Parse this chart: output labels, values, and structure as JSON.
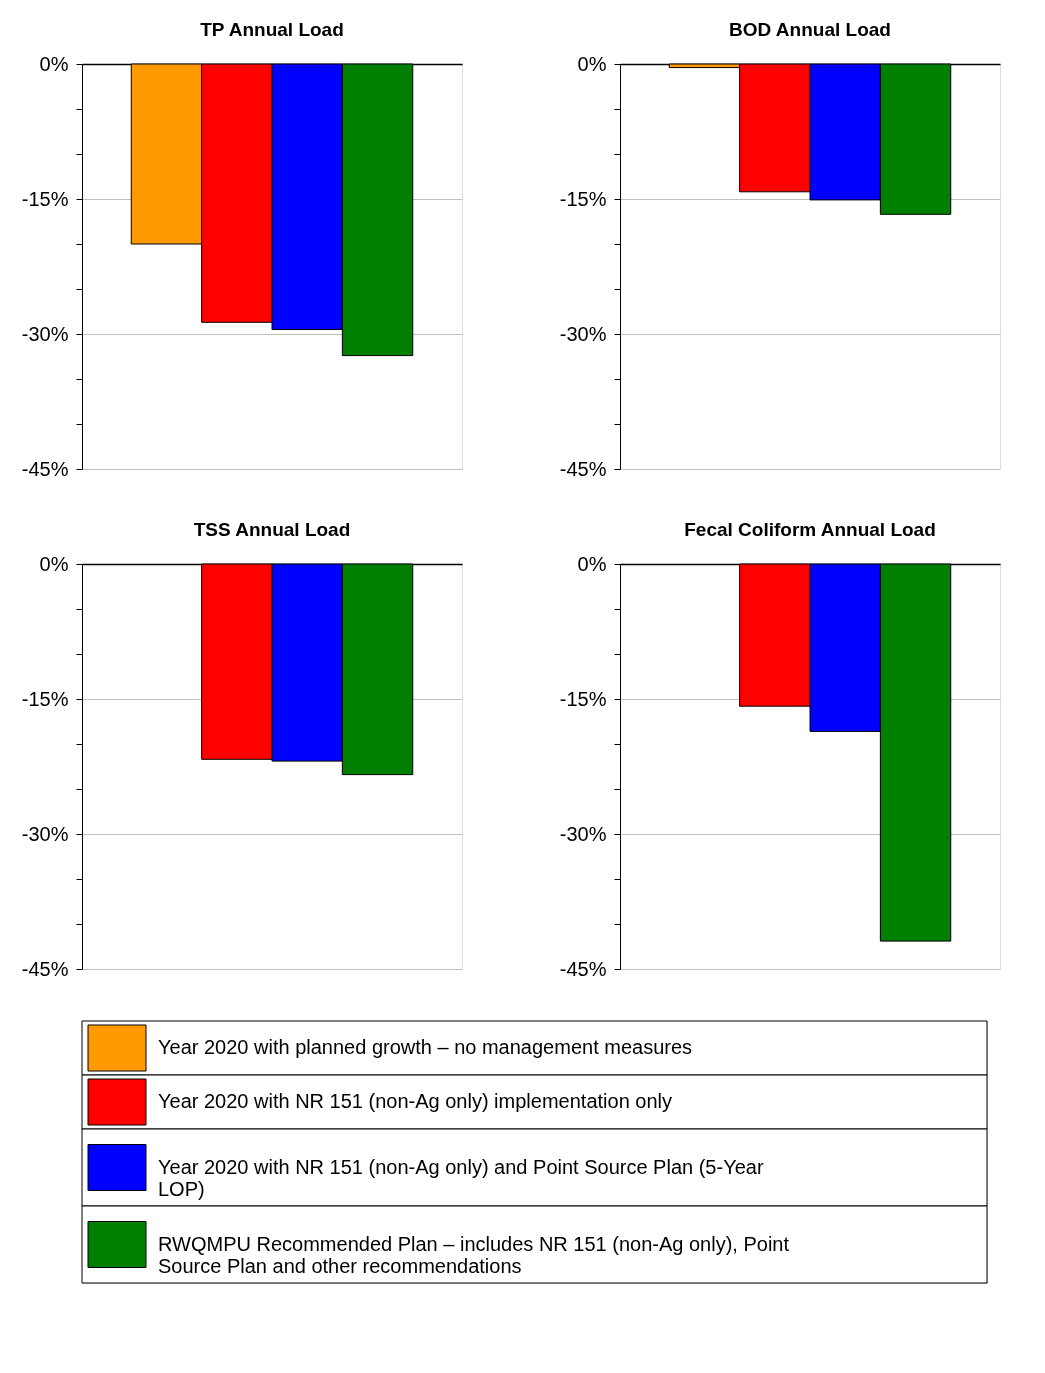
{
  "chart_data": [
    {
      "type": "bar",
      "title": "TP Annual Load",
      "categories": [
        null
      ],
      "tick_labels": "y",
      "grid": "y",
      "legend": "bottom",
      "ylim": [
        -45,
        0
      ],
      "yticks": [
        {
          "value": 0,
          "label": "0%"
        },
        {
          "value": -5,
          "label": null
        },
        {
          "value": -10,
          "label": null
        },
        {
          "value": -15,
          "label": "-15%"
        },
        {
          "value": -20,
          "label": null
        },
        {
          "value": -25,
          "label": null
        },
        {
          "value": -30,
          "label": "-30%"
        },
        {
          "value": -35,
          "label": null
        },
        {
          "value": -40,
          "label": null
        },
        {
          "value": -45,
          "label": "-45%"
        }
      ],
      "series": [
        {
          "name": "Year 2020 with planned growth – no management measures",
          "color": "#ff9900",
          "values": [
            -20
          ]
        },
        {
          "name": "Year 2020 with NR 151 (non-Ag only) implementation only",
          "color": "#ff0000",
          "values": [
            -28.7
          ]
        },
        {
          "name": "Year 2020 with NR 151 (non-Ag only) and Point Source Plan (5-Year LOP)",
          "color": "#0000ff",
          "values": [
            -29.5
          ]
        },
        {
          "name": "RWQMPU Recommended Plan – includes NR 151 (non-Ag only), Point Source Plan and other recommendations",
          "color": "#008000",
          "values": [
            -32.4
          ]
        }
      ]
    },
    {
      "type": "bar",
      "title": "BOD Annual Load",
      "categories": [
        null
      ],
      "tick_labels": "y",
      "grid": "y",
      "ylim": [
        -45,
        0
      ],
      "yticks": [
        {
          "value": 0,
          "label": "0%"
        },
        {
          "value": -5,
          "label": null
        },
        {
          "value": -10,
          "label": null
        },
        {
          "value": -15,
          "label": "-15%"
        },
        {
          "value": -20,
          "label": null
        },
        {
          "value": -25,
          "label": null
        },
        {
          "value": -30,
          "label": "-30%"
        },
        {
          "value": -35,
          "label": null
        },
        {
          "value": -40,
          "label": null
        },
        {
          "value": -45,
          "label": "-45%"
        }
      ],
      "series": [
        {
          "color": "#ff9900",
          "values": [
            -0.4
          ]
        },
        {
          "color": "#ff0000",
          "values": [
            -14.2
          ]
        },
        {
          "color": "#0000ff",
          "values": [
            -15.1
          ]
        },
        {
          "color": "#008000",
          "values": [
            -16.7
          ]
        }
      ]
    },
    {
      "type": "bar",
      "title": "TSS Annual Load",
      "categories": [
        null
      ],
      "tick_labels": "y",
      "grid": "y",
      "ylim": [
        -45,
        0
      ],
      "yticks": [
        {
          "value": 0,
          "label": "0%"
        },
        {
          "value": -5,
          "label": null
        },
        {
          "value": -10,
          "label": null
        },
        {
          "value": -15,
          "label": "-15%"
        },
        {
          "value": -20,
          "label": null
        },
        {
          "value": -25,
          "label": null
        },
        {
          "value": -30,
          "label": "-30%"
        },
        {
          "value": -35,
          "label": null
        },
        {
          "value": -40,
          "label": null
        },
        {
          "value": -45,
          "label": "-45%"
        }
      ],
      "series": [
        {
          "values": [
            null
          ]
        },
        {
          "color": "#ff0000",
          "values": [
            -21.7
          ]
        },
        {
          "color": "#0000ff",
          "values": [
            -21.9
          ]
        },
        {
          "color": "#008000",
          "values": [
            -23.4
          ]
        }
      ]
    },
    {
      "type": "bar",
      "title": "Fecal Coliform Annual Load",
      "categories": [
        null
      ],
      "tick_labels": "y",
      "grid": "y",
      "ylim": [
        -45,
        0
      ],
      "yticks": [
        {
          "value": 0,
          "label": "0%"
        },
        {
          "value": -5,
          "label": null
        },
        {
          "value": -10,
          "label": null
        },
        {
          "value": -15,
          "label": "-15%"
        },
        {
          "value": -20,
          "label": null
        },
        {
          "value": -25,
          "label": null
        },
        {
          "value": -30,
          "label": "-30%"
        },
        {
          "value": -35,
          "label": null
        },
        {
          "value": -40,
          "label": null
        },
        {
          "value": -45,
          "label": "-45%"
        }
      ],
      "series": [
        {
          "values": [
            null
          ]
        },
        {
          "color": "#ff0000",
          "values": [
            -15.8
          ]
        },
        {
          "color": "#0000ff",
          "values": [
            -18.6
          ]
        },
        {
          "color": "#008000",
          "values": [
            -41.9
          ]
        }
      ]
    }
  ]
}
